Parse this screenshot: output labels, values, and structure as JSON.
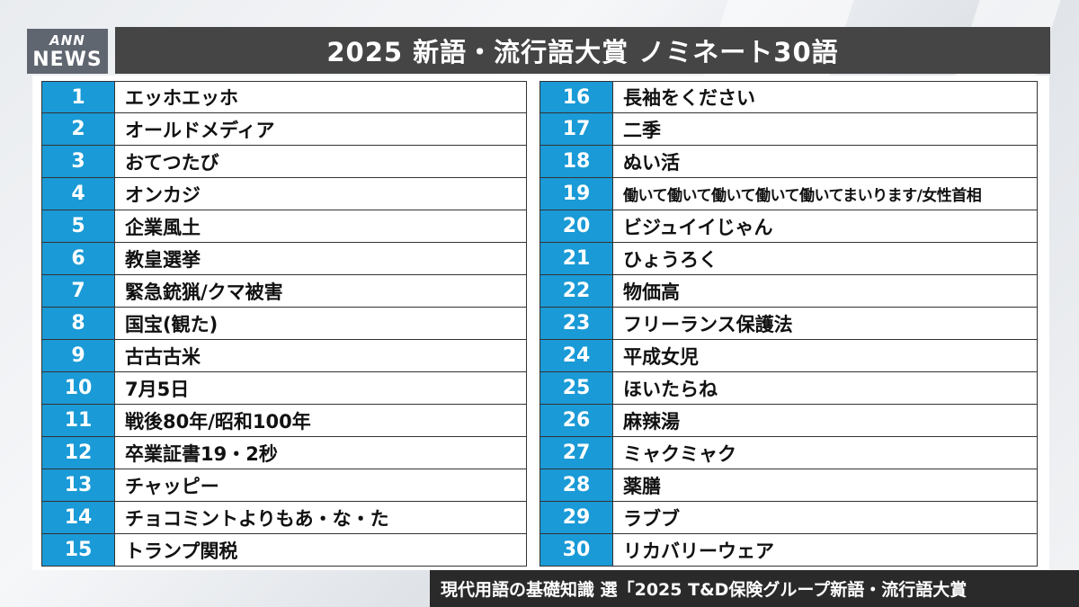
{
  "logo": {
    "line1": "ANN",
    "line2": "NEWS"
  },
  "title": "2025 新語・流行語大賞 ノミネート30語",
  "nominees_left": [
    {
      "num": "1",
      "word": "エッホエッホ"
    },
    {
      "num": "2",
      "word": "オールドメディア"
    },
    {
      "num": "3",
      "word": "おてつたび"
    },
    {
      "num": "4",
      "word": "オンカジ"
    },
    {
      "num": "5",
      "word": "企業風土"
    },
    {
      "num": "6",
      "word": "教皇選挙"
    },
    {
      "num": "7",
      "word": "緊急銃猟/クマ被害"
    },
    {
      "num": "8",
      "word": "国宝(観た)"
    },
    {
      "num": "9",
      "word": "古古古米"
    },
    {
      "num": "10",
      "word": "7月5日"
    },
    {
      "num": "11",
      "word": "戦後80年/昭和100年"
    },
    {
      "num": "12",
      "word": "卒業証書19・2秒"
    },
    {
      "num": "13",
      "word": "チャッピー"
    },
    {
      "num": "14",
      "word": "チョコミントよりもあ・な・た"
    },
    {
      "num": "15",
      "word": "トランプ関税"
    }
  ],
  "nominees_right": [
    {
      "num": "16",
      "word": "長袖をください"
    },
    {
      "num": "17",
      "word": "二季"
    },
    {
      "num": "18",
      "word": "ぬい活"
    },
    {
      "num": "19",
      "word": "働いて働いて働いて働いて働いてまいります/女性首相"
    },
    {
      "num": "20",
      "word": "ビジュイイじゃん"
    },
    {
      "num": "21",
      "word": "ひょうろく"
    },
    {
      "num": "22",
      "word": "物価高"
    },
    {
      "num": "23",
      "word": "フリーランス保護法"
    },
    {
      "num": "24",
      "word": "平成女児"
    },
    {
      "num": "25",
      "word": "ほいたらね"
    },
    {
      "num": "26",
      "word": "麻辣湯"
    },
    {
      "num": "27",
      "word": "ミャクミャク"
    },
    {
      "num": "28",
      "word": "薬膳"
    },
    {
      "num": "29",
      "word": "ラブブ"
    },
    {
      "num": "30",
      "word": "リカバリーウェア"
    }
  ],
  "caption": "現代用語の基礎知識 選「2025 T&D保険グループ新語・流行語大賞",
  "colors": {
    "number_bg": "#1a9ad6",
    "title_bg": "#454545",
    "caption_bg": "#2a2a2a"
  }
}
